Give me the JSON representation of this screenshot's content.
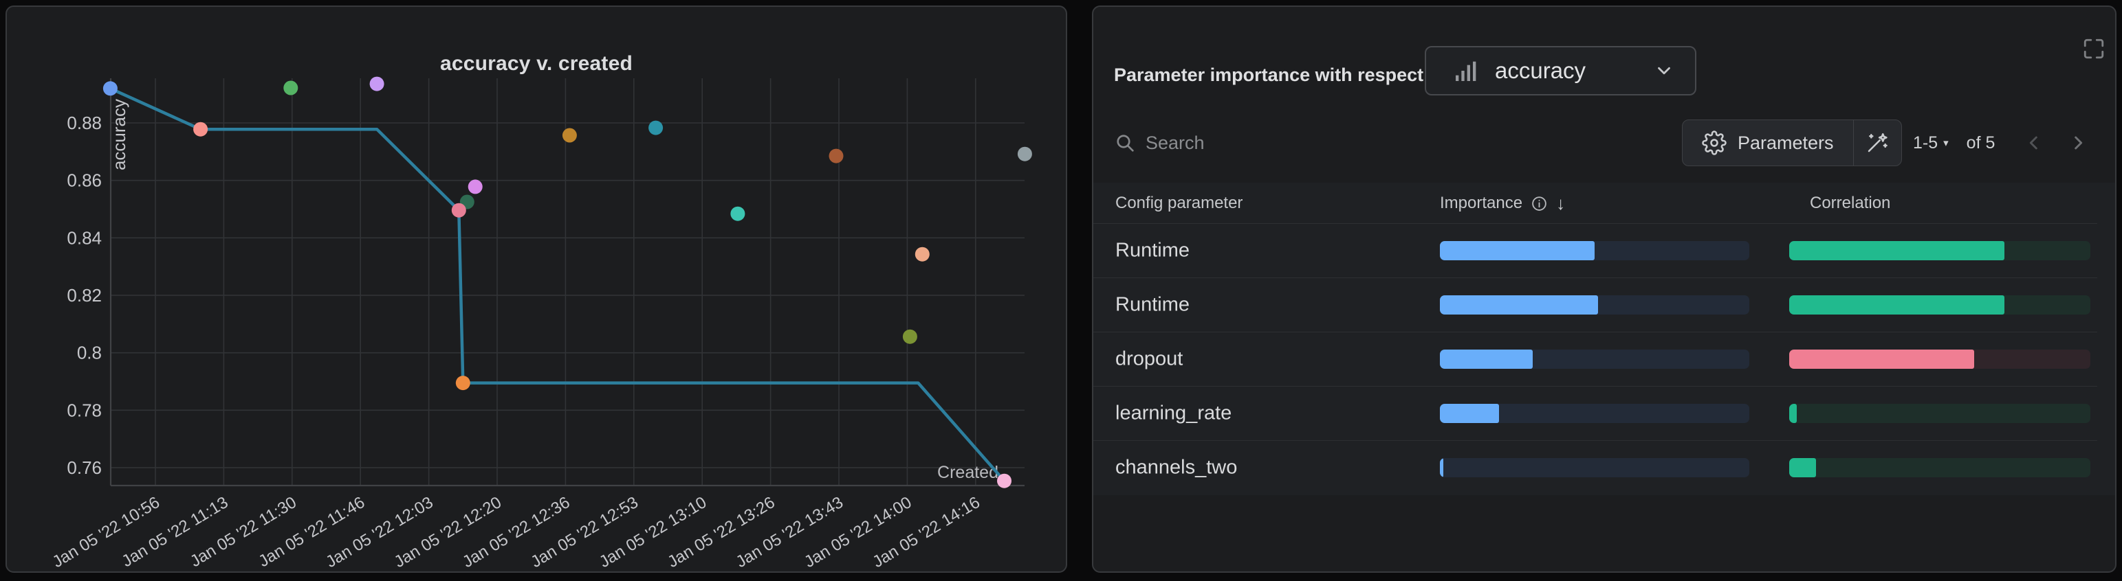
{
  "left_panel": {
    "title": "accuracy v. created"
  },
  "chart_data": {
    "type": "scatter",
    "title": "accuracy v. created",
    "xlabel": "Created",
    "ylabel": "accuracy",
    "x_tick_labels": [
      "Jan 05 '22 10:56",
      "Jan 05 '22 11:13",
      "Jan 05 '22 11:30",
      "Jan 05 '22 11:46",
      "Jan 05 '22 12:03",
      "Jan 05 '22 12:20",
      "Jan 05 '22 12:36",
      "Jan 05 '22 12:53",
      "Jan 05 '22 13:10",
      "Jan 05 '22 13:26",
      "Jan 05 '22 13:43",
      "Jan 05 '22 14:00",
      "Jan 05 '22 14:16"
    ],
    "y_tick_labels": [
      "0.88",
      "0.86",
      "0.84",
      "0.82",
      "0.8",
      "0.78",
      "0.76"
    ],
    "ylim": [
      0.752,
      0.9
    ],
    "grid": true,
    "points": [
      {
        "created": "Jan 05 '22 10:45",
        "accuracy": 0.892,
        "color": "#6a9bf0"
      },
      {
        "created": "Jan 05 '22 11:07",
        "accuracy": 0.8778,
        "color": "#f8938c"
      },
      {
        "created": "Jan 05 '22 11:29",
        "accuracy": 0.8922,
        "color": "#55b465"
      },
      {
        "created": "Jan 05 '22 11:50",
        "accuracy": 0.8936,
        "color": "#c79af5"
      },
      {
        "created": "Jan 05 '22 12:14",
        "accuracy": 0.8578,
        "color": "#d98bea"
      },
      {
        "created": "Jan 05 '22 12:12",
        "accuracy": 0.8525,
        "color": "#2e6b52"
      },
      {
        "created": "Jan 05 '22 12:10",
        "accuracy": 0.8496,
        "color": "#e87f96"
      },
      {
        "created": "Jan 05 '22 12:11",
        "accuracy": 0.7895,
        "color": "#ef8b3f"
      },
      {
        "created": "Jan 05 '22 12:37",
        "accuracy": 0.8757,
        "color": "#c0862c"
      },
      {
        "created": "Jan 05 '22 12:58",
        "accuracy": 0.8783,
        "color": "#2b93a8"
      },
      {
        "created": "Jan 05 '22 13:18",
        "accuracy": 0.8484,
        "color": "#3cc6b2"
      },
      {
        "created": "Jan 05 '22 13:42",
        "accuracy": 0.8685,
        "color": "#a85b35"
      },
      {
        "created": "Jan 05 '22 14:03",
        "accuracy": 0.8343,
        "color": "#efa987"
      },
      {
        "created": "Jan 05 '22 14:00",
        "accuracy": 0.8056,
        "color": "#7c9434"
      },
      {
        "created": "Jan 05 '22 14:28",
        "accuracy": 0.8692,
        "color": "#93a0a5"
      },
      {
        "created": "Jan 05 '22 14:23",
        "accuracy": 0.7554,
        "color": "#f6b4da"
      }
    ],
    "trend_line": {
      "name": "run-path-line",
      "color": "#2d7f9e",
      "points": [
        {
          "created": "Jan 05 '22 10:45",
          "accuracy": 0.892
        },
        {
          "created": "Jan 05 '22 11:07",
          "accuracy": 0.8778
        },
        {
          "created": "Jan 05 '22 11:50",
          "accuracy": 0.8778
        },
        {
          "created": "Jan 05 '22 12:10",
          "accuracy": 0.8496
        },
        {
          "created": "Jan 05 '22 12:11",
          "accuracy": 0.7895
        },
        {
          "created": "Jan 05 '22 14:02",
          "accuracy": 0.7895
        },
        {
          "created": "Jan 05 '22 14:23",
          "accuracy": 0.7554
        }
      ]
    },
    "axis_colors": {
      "grid": "#313336",
      "axis": "#404245",
      "tick_text": "#c6c7cb",
      "axis_title": "#b9babe"
    }
  },
  "right_panel": {
    "header": {
      "label": "Parameter importance with respect to",
      "metric": "accuracy"
    },
    "toolbar": {
      "search_placeholder": "Search",
      "parameters_label": "Parameters",
      "page_range": "1-5",
      "page_of": "of 5"
    },
    "table": {
      "headers": {
        "param": "Config parameter",
        "importance": "Importance",
        "correlation": "Correlation"
      },
      "rows": [
        {
          "param": "Runtime",
          "importance": 0.5,
          "correlation": 0.715,
          "correlation_color": "green"
        },
        {
          "param": "Runtime",
          "importance": 0.51,
          "correlation": 0.715,
          "correlation_color": "green"
        },
        {
          "param": "dropout",
          "importance": 0.3,
          "correlation": 0.615,
          "correlation_color": "pink"
        },
        {
          "param": "learning_rate",
          "importance": 0.19,
          "correlation": 0.025,
          "correlation_color": "green"
        },
        {
          "param": "channels_two",
          "importance": 0.012,
          "correlation": 0.09,
          "correlation_color": "green"
        }
      ]
    },
    "colors": {
      "importance_fill": "#69aefa",
      "importance_track": "#232b38",
      "green_fill": "#21ba8e",
      "green_track": "#1e2f2a",
      "pink_fill": "#f07e93",
      "pink_track": "#30252a"
    },
    "icons": {
      "sort_arrow": "↓",
      "page_caret": "▾"
    }
  }
}
